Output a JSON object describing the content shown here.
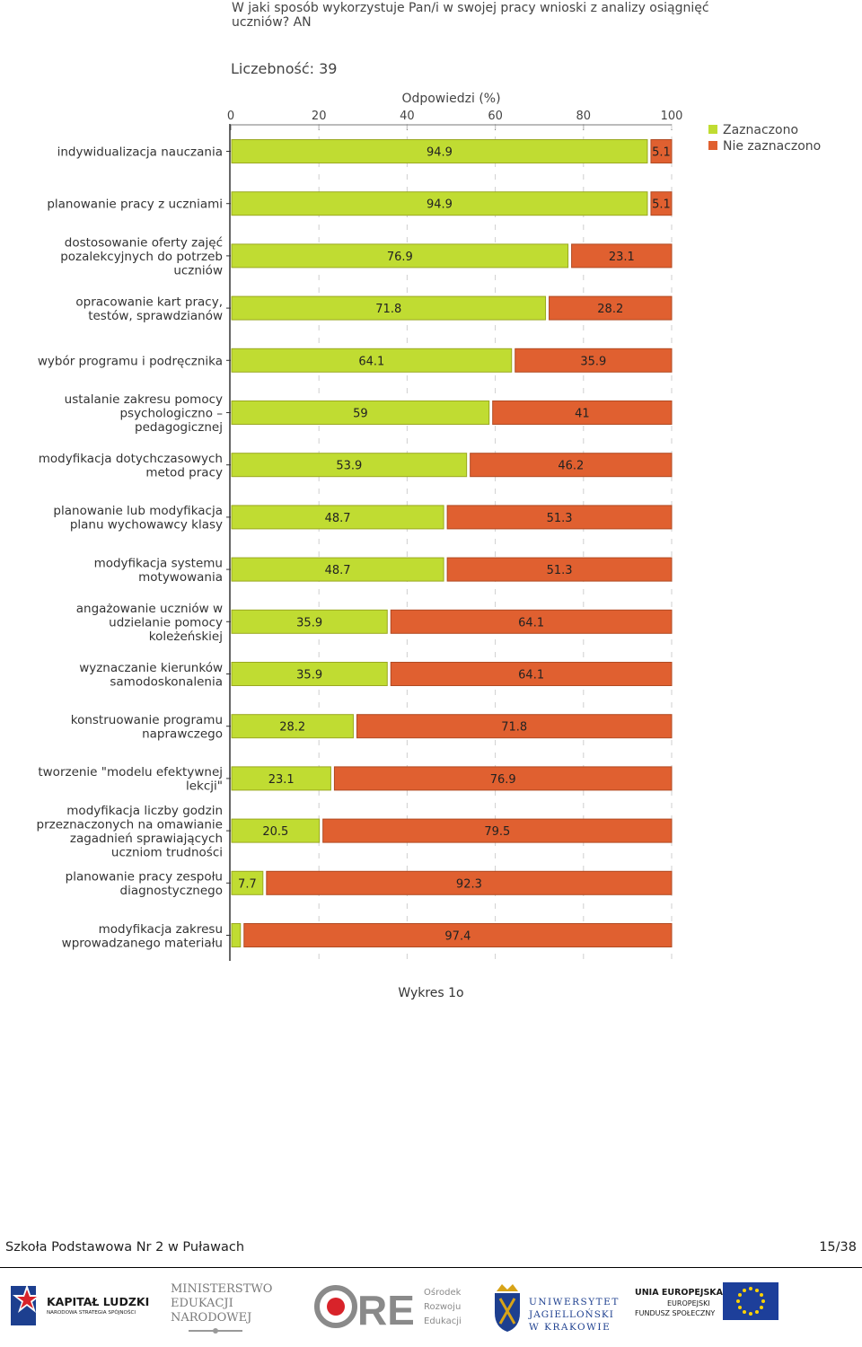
{
  "chart_data": {
    "type": "bar",
    "orientation": "horizontal",
    "stacked": true,
    "title": "W jaki sposób wykorzystuje Pan/i w swojej pracy wnioski z analizy osiągnięć uczniów? AN",
    "title_lines": [
      "W jaki sposób wykorzystuje Pan/i w swojej pracy wnioski z analizy osiągnięć",
      "uczniów? AN"
    ],
    "count_label": "Liczebność: 39",
    "xlabel": "Odpowiedzi (%)",
    "xlim": [
      0,
      100
    ],
    "xticks": [
      0,
      20,
      40,
      60,
      80,
      100
    ],
    "grid": true,
    "legend_position": "top-right",
    "categories": [
      [
        "indywidualizacja nauczania"
      ],
      [
        "planowanie pracy z uczniami"
      ],
      [
        "dostosowanie oferty zajęć",
        "pozalekcyjnych do potrzeb",
        "uczniów"
      ],
      [
        "opracowanie kart pracy,",
        "testów, sprawdzianów"
      ],
      [
        "wybór programu i podręcznika"
      ],
      [
        "ustalanie zakresu pomocy",
        "psychologiczno –",
        "pedagogicznej"
      ],
      [
        "modyfikacja dotychczasowych",
        "metod pracy"
      ],
      [
        "planowanie lub modyfikacja",
        "planu wychowawcy klasy"
      ],
      [
        "modyfikacja systemu",
        "motywowania"
      ],
      [
        "angażowanie uczniów w",
        "udzielanie pomocy",
        "koleżeńskiej"
      ],
      [
        "wyznaczanie kierunków",
        "samodoskonalenia"
      ],
      [
        "konstruowanie programu",
        "naprawczego"
      ],
      [
        "tworzenie \"modelu efektywnej",
        "lekcji\""
      ],
      [
        "modyfikacja liczby godzin",
        "przeznaczonych na omawianie",
        "zagadnień sprawiających",
        "uczniom trudności"
      ],
      [
        "planowanie pracy zespołu",
        "diagnostycznego"
      ],
      [
        "modyfikacja zakresu",
        "wprowadzanego materiału"
      ]
    ],
    "series": [
      {
        "name": "Zaznaczono",
        "color": "#c0dc32",
        "values": [
          94.9,
          94.9,
          76.9,
          71.8,
          64.1,
          59,
          53.9,
          48.7,
          48.7,
          35.9,
          35.9,
          28.2,
          23.1,
          20.5,
          7.7,
          2.6
        ],
        "labels": [
          "94.9",
          "94.9",
          "76.9",
          "71.8",
          "64.1",
          "59",
          "53.9",
          "48.7",
          "48.7",
          "35.9",
          "35.9",
          "28.2",
          "23.1",
          "20.5",
          "7.7",
          ""
        ]
      },
      {
        "name": "Nie zaznaczono",
        "color": "#e06030",
        "values": [
          5.1,
          5.1,
          23.1,
          28.2,
          35.9,
          41,
          46.2,
          51.3,
          51.3,
          64.1,
          64.1,
          71.8,
          76.9,
          79.5,
          92.3,
          97.4
        ],
        "labels": [
          "5.1",
          "5.1",
          "23.1",
          "28.2",
          "35.9",
          "41",
          "46.2",
          "51.3",
          "51.3",
          "64.1",
          "64.1",
          "71.8",
          "76.9",
          "79.5",
          "92.3",
          "97.4"
        ]
      }
    ]
  },
  "caption": "Wykres 1o",
  "footer": {
    "school": "Szkoła Podstawowa Nr 2 w Puławach",
    "page": "15/38"
  },
  "logos": {
    "kapital": {
      "title": "KAPITAŁ LUDZKI",
      "subtitle": "NARODOWA STRATEGIA SPÓJNOŚCI"
    },
    "men": {
      "line1": "MINISTERSTWO",
      "line2": "EDUKACJI",
      "line3": "NARODOWEJ"
    },
    "ore": {
      "mark": "ORE",
      "line1": "Ośrodek",
      "line2": "Rozwoju",
      "line3": "Edukacji"
    },
    "uj": {
      "line1": "UNIWERSYTET",
      "line2": "JAGIELLOŃSKI",
      "line3": "W KRAKOWIE"
    },
    "ue": {
      "line1": "UNIA EUROPEJSKA",
      "line2": "EUROPEJSKI",
      "line3": "FUNDUSZ SPOŁECZNY"
    }
  }
}
